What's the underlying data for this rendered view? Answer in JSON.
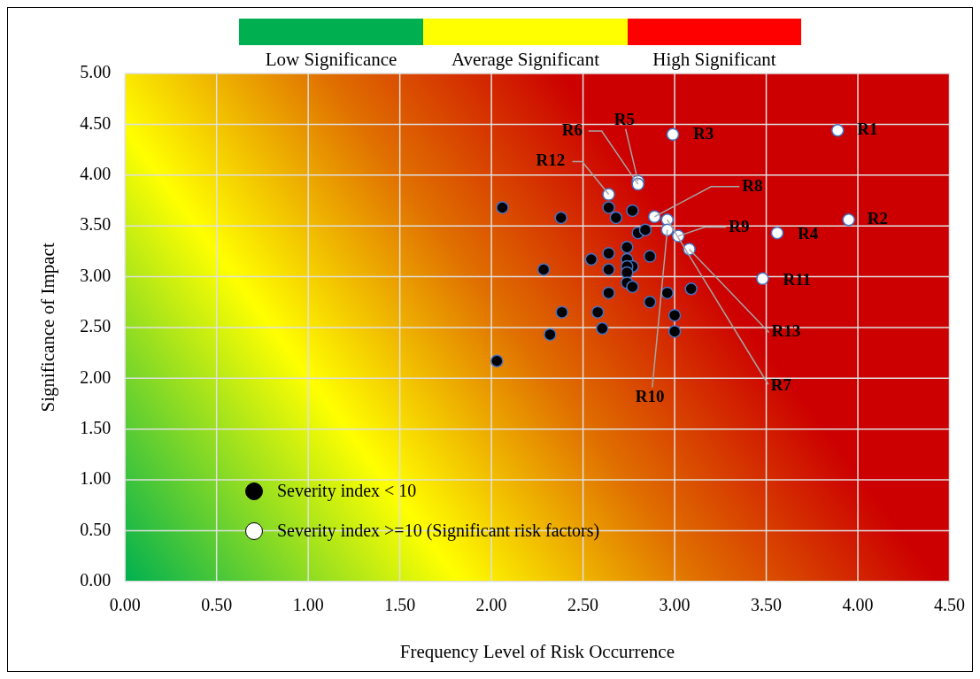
{
  "chart_data": {
    "type": "scatter",
    "xlabel": "Frequency Level of Risk Occurrence",
    "ylabel": "Significance of Impact",
    "xlim": [
      0,
      4.5
    ],
    "ylim": [
      0,
      5
    ],
    "xticks": [
      {
        "value": 0,
        "label": "0.00"
      },
      {
        "value": 0.5,
        "label": "0.50"
      },
      {
        "value": 1,
        "label": "1.00"
      },
      {
        "value": 1.5,
        "label": "1.50"
      },
      {
        "value": 2,
        "label": "2.00"
      },
      {
        "value": 2.5,
        "label": "2.50"
      },
      {
        "value": 3,
        "label": "3.00"
      },
      {
        "value": 3.5,
        "label": "3.50"
      },
      {
        "value": 4,
        "label": "4.00"
      },
      {
        "value": 4.5,
        "label": "4.50"
      }
    ],
    "yticks": [
      {
        "value": 0,
        "label": "0.00"
      },
      {
        "value": 0.5,
        "label": "0.50"
      },
      {
        "value": 1,
        "label": "1.00"
      },
      {
        "value": 1.5,
        "label": "1.50"
      },
      {
        "value": 2,
        "label": "2.00"
      },
      {
        "value": 2.5,
        "label": "2.50"
      },
      {
        "value": 3,
        "label": "3.00"
      },
      {
        "value": 3.5,
        "label": "3.50"
      },
      {
        "value": 4,
        "label": "4.00"
      },
      {
        "value": 4.5,
        "label": "4.50"
      },
      {
        "value": 5,
        "label": "5.00"
      }
    ],
    "grid": true,
    "legend": "bottom left",
    "marker": "circle",
    "series": [
      {
        "name": "Severity index < 10",
        "color": "#000000",
        "x": [
          2.06,
          2.38,
          2.64,
          2.68,
          2.77,
          2.8,
          2.84,
          2.74,
          2.64,
          2.545,
          2.865,
          2.74,
          2.77,
          2.74,
          2.285,
          2.64,
          2.74,
          2.74,
          2.77,
          2.64,
          2.865,
          2.96,
          3.09,
          2.385,
          2.58,
          3.0,
          2.32,
          2.605,
          3.0,
          2.03
        ],
        "values": [
          3.68,
          3.58,
          3.68,
          3.58,
          3.65,
          3.43,
          3.46,
          3.29,
          3.23,
          3.17,
          3.2,
          3.17,
          3.1,
          3.1,
          3.07,
          3.07,
          3.04,
          2.94,
          2.9,
          2.84,
          2.75,
          2.84,
          2.88,
          2.65,
          2.65,
          2.62,
          2.43,
          2.49,
          2.46,
          2.17
        ]
      },
      {
        "name": "Severity index >=10 (Significant risk factors)",
        "color": "#ffffff",
        "x": [
          3.89,
          3.95,
          2.99,
          3.56,
          2.8,
          2.8,
          2.96,
          2.89,
          3.02,
          2.96,
          3.48,
          2.64,
          3.08
        ],
        "values": [
          4.44,
          3.56,
          4.4,
          3.43,
          3.94,
          3.91,
          3.56,
          3.59,
          3.4,
          3.46,
          2.98,
          3.81,
          3.27
        ]
      }
    ],
    "annotations": [
      "Low Significance",
      "Average Significant",
      "High Significant",
      {
        "text": "R1",
        "x": 3.89,
        "y": 4.44
      },
      {
        "text": "R2",
        "x": 3.95,
        "y": 3.56
      },
      {
        "text": "R3",
        "x": 2.99,
        "y": 4.4
      },
      {
        "text": "R4",
        "x": 3.56,
        "y": 3.43
      },
      {
        "text": "R5",
        "x": 2.8,
        "y": 3.94
      },
      {
        "text": "R6",
        "x": 2.8,
        "y": 3.91
      },
      {
        "text": "R7",
        "x": 2.96,
        "y": 3.56
      },
      {
        "text": "R8",
        "x": 2.89,
        "y": 3.59
      },
      {
        "text": "R9",
        "x": 3.02,
        "y": 3.4
      },
      {
        "text": "R10",
        "x": 2.96,
        "y": 3.46
      },
      {
        "text": "R11",
        "x": 3.48,
        "y": 2.98
      },
      {
        "text": "R12",
        "x": 2.64,
        "y": 3.81
      },
      {
        "text": "R13",
        "x": 3.08,
        "y": 3.27
      }
    ]
  }
}
